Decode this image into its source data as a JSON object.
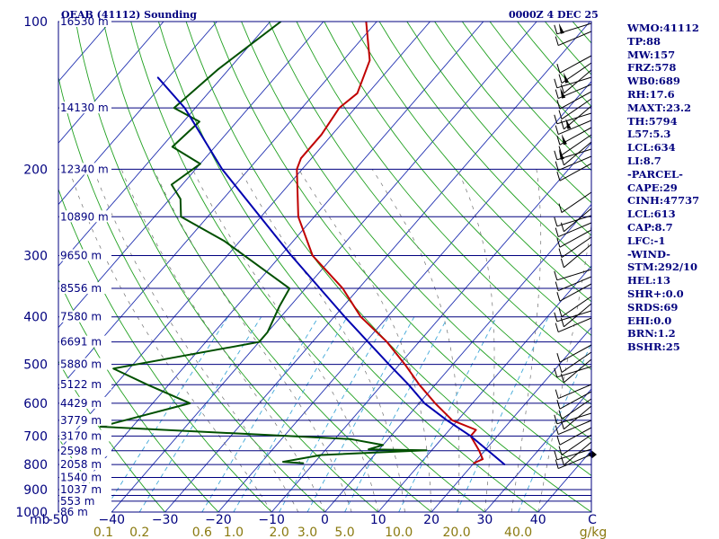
{
  "header": {
    "station": "OEAB (41112) Sounding",
    "time": "0000Z  4 DEC 25"
  },
  "params": [
    "WMO:41112",
    "TP:88",
    "MW:157",
    "FRZ:578",
    "WB0:689",
    "RH:17.6",
    "MAXT:23.2",
    "TH:5794",
    "L57:5.3",
    "LCL:634",
    "LI:8.7",
    "-PARCEL-",
    "CAPE:29",
    "CINH:47737",
    "LCL:613",
    "CAP:8.7",
    "LFC:-1",
    "-WIND-",
    "STM:292/10",
    "HEL:13",
    "SHR+:0.0",
    "SRDS:69",
    "EHI:0.0",
    "BRN:1.2",
    "BSHR:25"
  ],
  "chart_data": {
    "type": "skew-t log-p sounding",
    "title": "OEAB (41112) Sounding",
    "valid_time": "0000Z  4 DEC 25",
    "pressure_axis": {
      "label": "mb",
      "range": [
        1000,
        100
      ],
      "ticks": [
        100,
        200,
        300,
        400,
        500,
        600,
        700,
        800,
        900,
        1000
      ],
      "tick_labels": [
        "100",
        "200",
        "300",
        "400",
        "500",
        "600",
        "700",
        "800",
        "900",
        "1000"
      ]
    },
    "isobars_mb": [
      100,
      150,
      200,
      250,
      300,
      350,
      400,
      450,
      500,
      550,
      600,
      650,
      700,
      750,
      800,
      850,
      900,
      925,
      950,
      1000
    ],
    "temperature_axis": {
      "label": "C",
      "range": [
        -50,
        50
      ],
      "ticks": [
        -50,
        -40,
        -30,
        -20,
        -10,
        0,
        10,
        20,
        30,
        40
      ],
      "tick_labels": [
        "-50",
        "−40",
        "−30",
        "−20",
        "−10",
        "0",
        "10",
        "20",
        "30",
        "40"
      ],
      "unit_label": "C"
    },
    "mixing_ratio_axis": {
      "label": "g/kg",
      "values": [
        0.1,
        0.2,
        0.6,
        1.0,
        2.0,
        3.0,
        5.0,
        10.0,
        20.0,
        40.0
      ],
      "tick_labels": [
        "0.1",
        "0.2",
        "0.6",
        "1.0",
        "2.0",
        "3.0",
        "5.0",
        "10.0",
        "20.0",
        "40.0"
      ]
    },
    "height_labels": [
      {
        "p": 100,
        "label": "16530 m"
      },
      {
        "p": 150,
        "label": "14130 m"
      },
      {
        "p": 200,
        "label": "12340 m"
      },
      {
        "p": 250,
        "label": "10890 m"
      },
      {
        "p": 300,
        "label": "9650 m"
      },
      {
        "p": 350,
        "label": "8556 m"
      },
      {
        "p": 400,
        "label": "7580 m"
      },
      {
        "p": 450,
        "label": "6691 m"
      },
      {
        "p": 500,
        "label": "5880 m"
      },
      {
        "p": 550,
        "label": "5122 m"
      },
      {
        "p": 600,
        "label": "4429 m"
      },
      {
        "p": 650,
        "label": "3779 m"
      },
      {
        "p": 700,
        "label": "3170 m"
      },
      {
        "p": 750,
        "label": "2598 m"
      },
      {
        "p": 800,
        "label": "2058 m"
      },
      {
        "p": 850,
        "label": "1540 m"
      },
      {
        "p": 900,
        "label": "1037 m"
      },
      {
        "p": 950,
        "label": "553 m"
      },
      {
        "p": 1000,
        "label": "86 m"
      }
    ],
    "series": [
      {
        "name": "Temperature",
        "color": "#c00000",
        "points": [
          {
            "p": 100,
            "t": -72
          },
          {
            "p": 120,
            "t": -65
          },
          {
            "p": 140,
            "t": -62
          },
          {
            "p": 150,
            "t": -63
          },
          {
            "p": 170,
            "t": -62
          },
          {
            "p": 190,
            "t": -62
          },
          {
            "p": 200,
            "t": -61
          },
          {
            "p": 250,
            "t": -53
          },
          {
            "p": 300,
            "t": -44
          },
          {
            "p": 350,
            "t": -33
          },
          {
            "p": 400,
            "t": -25
          },
          {
            "p": 450,
            "t": -16
          },
          {
            "p": 500,
            "t": -9
          },
          {
            "p": 550,
            "t": -3
          },
          {
            "p": 600,
            "t": 3
          },
          {
            "p": 650,
            "t": 9
          },
          {
            "p": 680,
            "t": 15
          },
          {
            "p": 700,
            "t": 15
          },
          {
            "p": 750,
            "t": 19
          },
          {
            "p": 780,
            "t": 21
          },
          {
            "p": 795,
            "t": 20
          }
        ]
      },
      {
        "name": "Dewpoint",
        "color": "#005000",
        "points": [
          {
            "p": 100,
            "t": -88
          },
          {
            "p": 125,
            "t": -92
          },
          {
            "p": 150,
            "t": -94
          },
          {
            "p": 160,
            "t": -87
          },
          {
            "p": 180,
            "t": -88
          },
          {
            "p": 195,
            "t": -80
          },
          {
            "p": 215,
            "t": -82
          },
          {
            "p": 230,
            "t": -78
          },
          {
            "p": 250,
            "t": -75
          },
          {
            "p": 280,
            "t": -63
          },
          {
            "p": 350,
            "t": -43
          },
          {
            "p": 380,
            "t": -42
          },
          {
            "p": 430,
            "t": -40
          },
          {
            "p": 450,
            "t": -40
          },
          {
            "p": 510,
            "t": -63
          },
          {
            "p": 550,
            "t": -54
          },
          {
            "p": 600,
            "t": -43
          },
          {
            "p": 670,
            "t": -56
          },
          {
            "p": 710,
            "t": -7
          },
          {
            "p": 730,
            "t": 0
          },
          {
            "p": 745,
            "t": -2
          },
          {
            "p": 748,
            "t": 9
          },
          {
            "p": 765,
            "t": -10
          },
          {
            "p": 790,
            "t": -16
          },
          {
            "p": 795,
            "t": -12
          }
        ]
      },
      {
        "name": "Parcel",
        "color": "#0000b0",
        "points": [
          {
            "p": 800,
            "t": 26
          },
          {
            "p": 700,
            "t": 15
          },
          {
            "p": 650,
            "t": 8
          },
          {
            "p": 600,
            "t": 1
          },
          {
            "p": 550,
            "t": -5
          },
          {
            "p": 500,
            "t": -12
          },
          {
            "p": 400,
            "t": -28
          },
          {
            "p": 300,
            "t": -48
          },
          {
            "p": 200,
            "t": -75
          },
          {
            "p": 150,
            "t": -92
          },
          {
            "p": 130,
            "t": -102
          }
        ]
      }
    ]
  }
}
